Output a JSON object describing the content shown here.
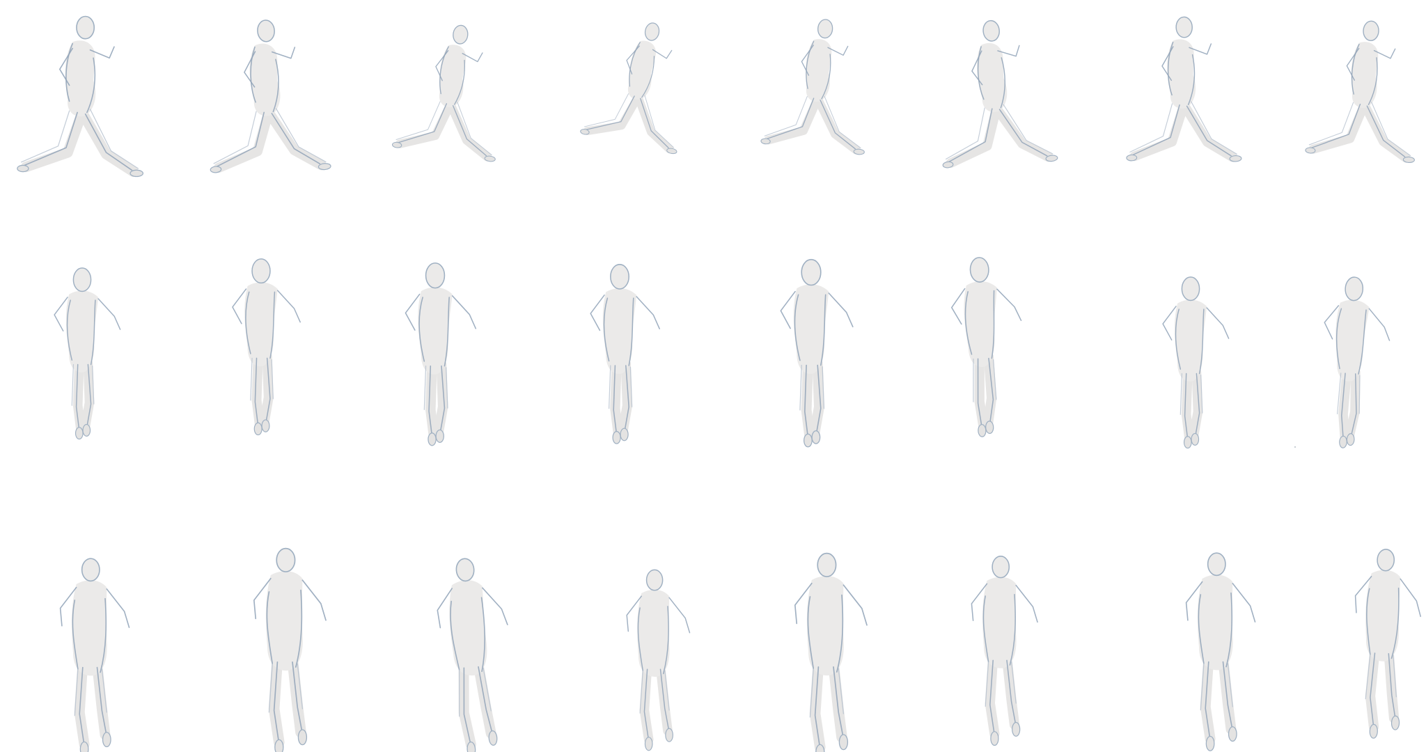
{
  "sheet": {
    "rows": [
      {
        "view": "side",
        "figure_count": 8
      },
      {
        "view": "front",
        "figure_count": 8
      },
      {
        "view": "back",
        "figure_count": 8
      }
    ],
    "colors": {
      "background": "#ffffff",
      "figure_fill": "#ebeae9",
      "sketch_line": "#8fa2b7",
      "sketch_line_light": "#b5c1ce"
    }
  }
}
